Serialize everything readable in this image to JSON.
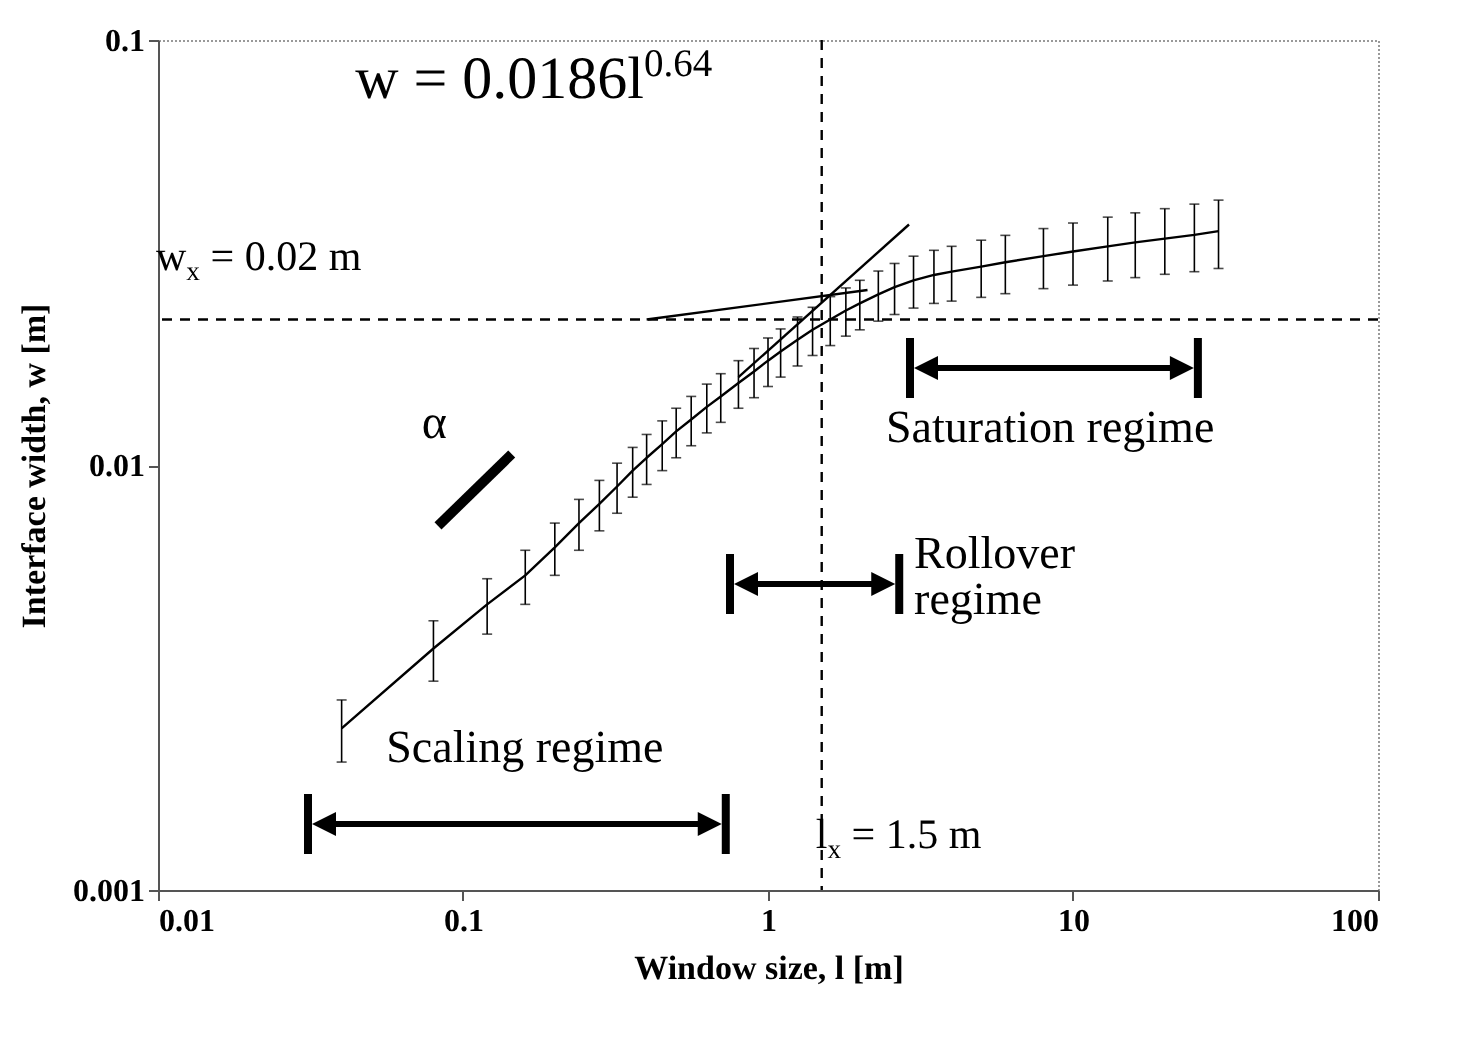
{
  "chart_data": {
    "type": "line",
    "xlabel": "Window size, l [m]",
    "ylabel": "Interface width, w [m]",
    "log": "xy",
    "xlim": [
      0.01,
      100
    ],
    "ylim": [
      0.001,
      0.1
    ],
    "xticks": [
      0.01,
      0.1,
      1,
      10,
      100
    ],
    "yticks": [
      0.001,
      0.01,
      0.1
    ],
    "series": [
      {
        "color": "#000000",
        "x": [
          0.04,
          0.08,
          0.12,
          0.16,
          0.2,
          0.24,
          0.28,
          0.32,
          0.36,
          0.4,
          0.45,
          0.5,
          0.56,
          0.63,
          0.7,
          0.8,
          0.9,
          1.0,
          1.1,
          1.25,
          1.4,
          1.6,
          1.8,
          2.0,
          2.3,
          2.6,
          3.0,
          3.5,
          4,
          5,
          6,
          8,
          10,
          13,
          16,
          20,
          25,
          30
        ],
        "values": [
          0.0024,
          0.0037,
          0.0047,
          0.0055,
          0.0064,
          0.0073,
          0.0081,
          0.0089,
          0.0097,
          0.0104,
          0.0112,
          0.012,
          0.0128,
          0.0137,
          0.0145,
          0.0156,
          0.0166,
          0.0176,
          0.0185,
          0.0197,
          0.0208,
          0.022,
          0.0231,
          0.024,
          0.0252,
          0.0262,
          0.0272,
          0.028,
          0.0285,
          0.0293,
          0.03,
          0.031,
          0.0318,
          0.0327,
          0.0334,
          0.0341,
          0.0348,
          0.0355
        ],
        "errors": [
          0.0004,
          0.0006,
          0.0007,
          0.0008,
          0.0009,
          0.001,
          0.0011,
          0.0012,
          0.0013,
          0.0014,
          0.0015,
          0.0016,
          0.0017,
          0.0018,
          0.0019,
          0.002,
          0.0022,
          0.0023,
          0.0024,
          0.0026,
          0.0027,
          0.0029,
          0.003,
          0.0032,
          0.0034,
          0.0036,
          0.0038,
          0.004,
          0.0042,
          0.0045,
          0.0047,
          0.005,
          0.0053,
          0.0056,
          0.0058,
          0.006,
          0.0063,
          0.0065
        ]
      },
      {
        "type": "line",
        "color": "#000000",
        "x": [
          0.8,
          2.9
        ],
        "values": [
          0.0161,
          0.0368
        ]
      },
      {
        "type": "line",
        "color": "#000000",
        "x": [
          0.4,
          2.12
        ],
        "values": [
          0.022,
          0.0258
        ]
      }
    ],
    "ref_lines": [
      {
        "axis": "y",
        "value": 0.022,
        "label": "w$_{x}$ = 0.02 m",
        "line_style": "dashed"
      },
      {
        "axis": "x",
        "value": 1.5,
        "label": "l$_{x}$ = 1.5 m",
        "line_style": "dashed"
      }
    ],
    "annotations": [
      "w = 0.0186l$^{0.64}$",
      "α",
      "Scaling regime",
      "Rollover regime",
      "Saturation regime"
    ]
  }
}
